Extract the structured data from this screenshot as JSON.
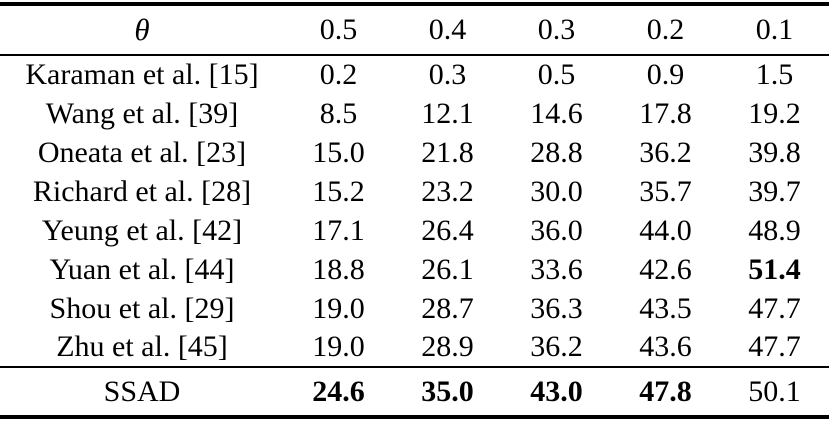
{
  "table": {
    "header": {
      "theta": "θ",
      "thresholds": [
        "0.5",
        "0.4",
        "0.3",
        "0.2",
        "0.1"
      ]
    },
    "rows": [
      {
        "method": "Karaman et al. [15]",
        "values": [
          "0.2",
          "0.3",
          "0.5",
          "0.9",
          "1.5"
        ],
        "bold_indices": []
      },
      {
        "method": "Wang et al. [39]",
        "values": [
          "8.5",
          "12.1",
          "14.6",
          "17.8",
          "19.2"
        ],
        "bold_indices": []
      },
      {
        "method": "Oneata et al. [23]",
        "values": [
          "15.0",
          "21.8",
          "28.8",
          "36.2",
          "39.8"
        ],
        "bold_indices": []
      },
      {
        "method": "Richard et al. [28]",
        "values": [
          "15.2",
          "23.2",
          "30.0",
          "35.7",
          "39.7"
        ],
        "bold_indices": []
      },
      {
        "method": "Yeung et al. [42]",
        "values": [
          "17.1",
          "26.4",
          "36.0",
          "44.0",
          "48.9"
        ],
        "bold_indices": []
      },
      {
        "method": "Yuan et al. [44]",
        "values": [
          "18.8",
          "26.1",
          "33.6",
          "42.6",
          "51.4"
        ],
        "bold_indices": [
          4
        ]
      },
      {
        "method": "Shou et al. [29]",
        "values": [
          "19.0",
          "28.7",
          "36.3",
          "43.5",
          "47.7"
        ],
        "bold_indices": []
      },
      {
        "method": "Zhu et al. [45]",
        "values": [
          "19.0",
          "28.9",
          "36.2",
          "43.6",
          "47.7"
        ],
        "bold_indices": []
      }
    ],
    "footer": {
      "method": "SSAD",
      "values": [
        "24.6",
        "35.0",
        "43.0",
        "47.8",
        "50.1"
      ],
      "bold_indices": [
        0,
        1,
        2,
        3
      ]
    }
  }
}
